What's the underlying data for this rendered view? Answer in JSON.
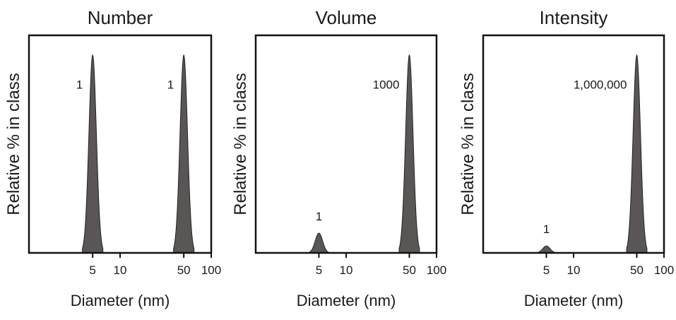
{
  "chart_data": [
    {
      "type": "area",
      "title": "Number",
      "xlabel": "Diameter (nm)",
      "ylabel": "Relative % in class",
      "x_scale": "log",
      "xlim": [
        1,
        100
      ],
      "ylim": [
        0,
        1.1
      ],
      "x_ticks": [
        5,
        10,
        50,
        100
      ],
      "x_tick_labels": [
        "5",
        "10",
        "50",
        "100"
      ],
      "grid": false,
      "series": [
        {
          "label": "1",
          "center": 5,
          "height": 1.0
        },
        {
          "label": "1",
          "center": 50,
          "height": 1.0
        }
      ]
    },
    {
      "type": "area",
      "title": "Volume",
      "xlabel": "Diameter (nm)",
      "ylabel": "Relative % in class",
      "x_scale": "log",
      "xlim": [
        1,
        100
      ],
      "ylim": [
        0,
        1.1
      ],
      "x_ticks": [
        5,
        10,
        50,
        100
      ],
      "x_tick_labels": [
        "5",
        "10",
        "50",
        "100"
      ],
      "grid": false,
      "series": [
        {
          "label": "1",
          "center": 5,
          "height": 0.1
        },
        {
          "label": "1000",
          "center": 50,
          "height": 1.0
        }
      ]
    },
    {
      "type": "area",
      "title": "Intensity",
      "xlabel": "Diameter (nm)",
      "ylabel": "Relative % in class",
      "x_scale": "log",
      "xlim": [
        1,
        100
      ],
      "ylim": [
        0,
        1.1
      ],
      "x_ticks": [
        5,
        10,
        50,
        100
      ],
      "x_tick_labels": [
        "5",
        "10",
        "50",
        "100"
      ],
      "grid": false,
      "series": [
        {
          "label": "1",
          "center": 5,
          "height": 0.035
        },
        {
          "label": "1,000,000",
          "center": 50,
          "height": 1.0
        }
      ]
    }
  ],
  "colors": {
    "peak_fill": "#5a5656",
    "axis": "#111111",
    "text": "#1a1a1a"
  }
}
